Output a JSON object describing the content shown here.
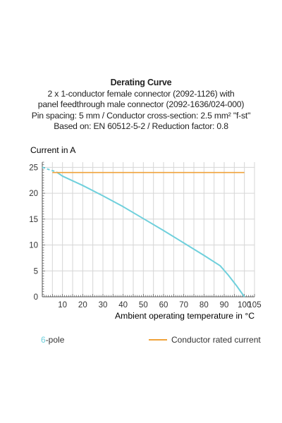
{
  "header": {
    "title": "Derating Curve",
    "line1": "2 x 1-conductor female connector (2092-1126) with",
    "line2": "panel feedthrough male connector (2092-1636/024-000)",
    "line3": "Pin spacing: 5 mm / Conductor cross-section: 2.5 mm² \"f-st\"",
    "line4": "Based on: EN 60512-5-2 / Reduction factor: 0.8"
  },
  "chart_data": {
    "type": "line",
    "title": "Derating Curve",
    "ylabel": "Current in A",
    "xlabel": "Ambient operating temperature in °C",
    "xlim": [
      0,
      105
    ],
    "ylim": [
      0,
      26
    ],
    "x_ticks": [
      10,
      20,
      30,
      40,
      50,
      60,
      70,
      80,
      90,
      100,
      105
    ],
    "y_ticks": [
      0,
      5,
      10,
      15,
      20,
      25
    ],
    "grid": true,
    "legend_position": "bottom",
    "series": [
      {
        "name": "6-pole",
        "name_prefix": "6",
        "name_suffix": "-pole",
        "color": "#6fd0dc",
        "dashed_start": {
          "x": [
            0,
            7
          ],
          "y": [
            25,
            24.1
          ]
        },
        "x": [
          7,
          10,
          20,
          30,
          40,
          50,
          60,
          70,
          80,
          88,
          92,
          96,
          100
        ],
        "y": [
          24.1,
          23.3,
          21.5,
          19.5,
          17.4,
          15.1,
          12.8,
          10.4,
          8.0,
          6.0,
          4.2,
          2.2,
          0
        ]
      },
      {
        "name": "Conductor rated current",
        "color": "#f0a23a",
        "x": [
          5,
          100
        ],
        "y": [
          24,
          24
        ]
      }
    ]
  }
}
